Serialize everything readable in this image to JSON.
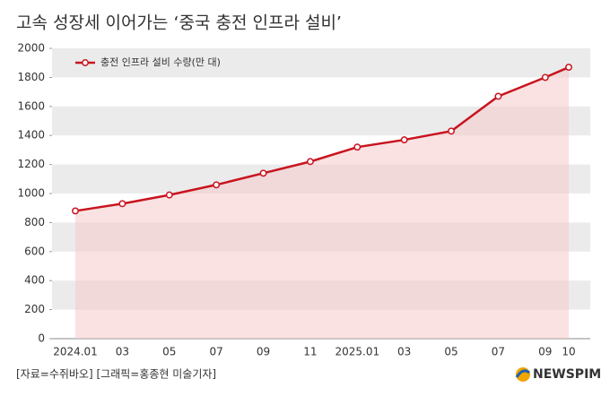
{
  "chart_data": {
    "type": "line",
    "title": "고속 성장세 이어가는 ‘중국 충전 인프라 설비’",
    "categories": [
      "2024.01",
      "03",
      "05",
      "07",
      "09",
      "11",
      "2025.01",
      "03",
      "05",
      "07",
      "09",
      "10"
    ],
    "series": [
      {
        "name": "충전 인프라 설비 수량(만 대)",
        "color": "#c8141e",
        "values": [
          880,
          930,
          990,
          1060,
          1140,
          1220,
          1320,
          1370,
          1430,
          1670,
          1800,
          1870
        ]
      }
    ],
    "area_color": "#f6c9cb",
    "ylim": [
      0,
      2000
    ],
    "yticks": [
      0,
      200,
      400,
      600,
      800,
      1000,
      1200,
      1400,
      1600,
      1800,
      2000
    ],
    "grid": "bands",
    "legend": "top-left",
    "source": "[자료=수쥐바오] [그래픽=홍종현 미술기자]",
    "logo": "NEWSPIM"
  }
}
